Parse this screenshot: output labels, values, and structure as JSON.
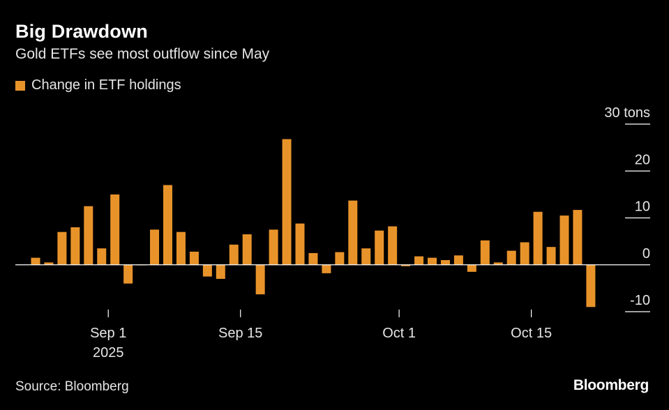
{
  "header": {
    "title": "Big Drawdown",
    "subtitle": "Gold ETFs see most outflow since May"
  },
  "legend": {
    "label": "Change in ETF holdings"
  },
  "footer": {
    "source": "Source: Bloomberg",
    "brand": "Bloomberg"
  },
  "colors": {
    "bar": "#E8932A",
    "background": "#000000",
    "axis": "#ffffff"
  },
  "chart_data": {
    "type": "bar",
    "title": "Big Drawdown",
    "subtitle": "Gold ETFs see most outflow since May",
    "ylabel": "tons",
    "ylim": [
      -10,
      30
    ],
    "y_ticks": [
      {
        "value": 30,
        "label": "30 tons"
      },
      {
        "value": 20,
        "label": "20"
      },
      {
        "value": 10,
        "label": "10"
      },
      {
        "value": 0,
        "label": "0"
      },
      {
        "value": -10,
        "label": "-10"
      }
    ],
    "x_ticks": [
      {
        "after_bar": 5,
        "label": "Sep 1",
        "sublabel": "2025"
      },
      {
        "after_bar": 15,
        "label": "Sep 15",
        "sublabel": ""
      },
      {
        "after_bar": 27,
        "label": "Oct 1",
        "sublabel": ""
      },
      {
        "after_bar": 37,
        "label": "Oct 15",
        "sublabel": ""
      }
    ],
    "series": [
      {
        "name": "Change in ETF holdings",
        "values": [
          1.5,
          0.5,
          7,
          8,
          12.5,
          3.5,
          15,
          -4,
          0,
          7.5,
          17,
          7,
          2.8,
          -2.5,
          -3,
          4.3,
          6.5,
          -6.3,
          7.5,
          26.8,
          8.8,
          2.5,
          -1.8,
          2.7,
          13.7,
          3.5,
          7.3,
          8.2,
          -0.3,
          1.8,
          1.5,
          1,
          2,
          -1.5,
          5.2,
          0.5,
          3,
          4.8,
          11.3,
          3.8,
          10.5,
          11.7,
          -9
        ]
      }
    ]
  }
}
